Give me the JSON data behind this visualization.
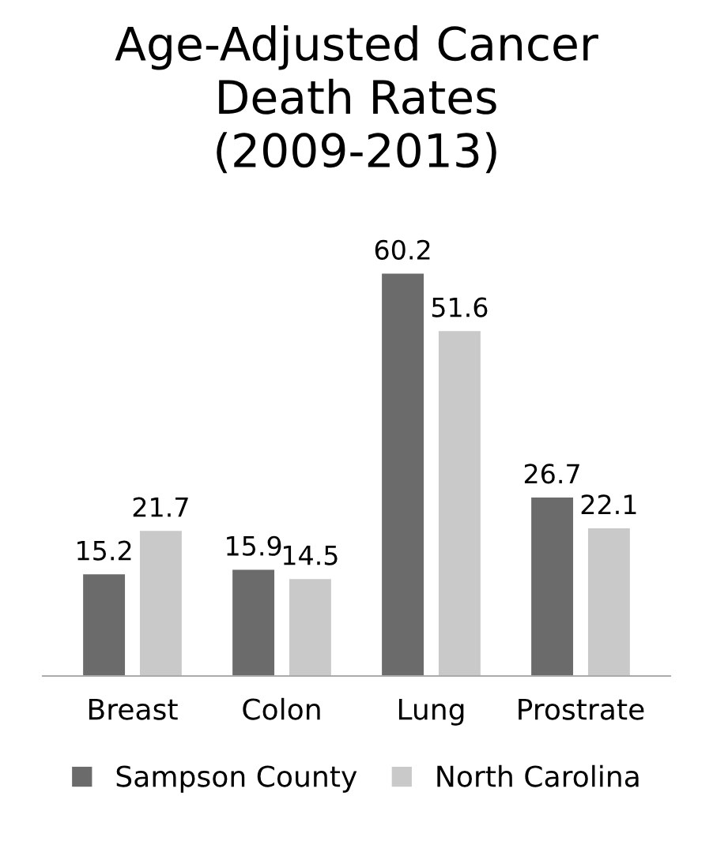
{
  "chart_data": {
    "type": "bar",
    "title": "Age-Adjusted Cancer\nDeath Rates\n(2009-2013)",
    "categories": [
      "Breast",
      "Colon",
      "Lung",
      "Prostrate"
    ],
    "series": [
      {
        "name": "Sampson County",
        "color": "#6b6b6b",
        "values": [
          15.2,
          15.9,
          60.2,
          26.7
        ]
      },
      {
        "name": "North Carolina",
        "color": "#c9c9c9",
        "values": [
          21.7,
          14.5,
          51.6,
          22.1
        ]
      }
    ],
    "data_labels": true,
    "legend": "bottom",
    "grid": false,
    "tick_labels": "x"
  }
}
